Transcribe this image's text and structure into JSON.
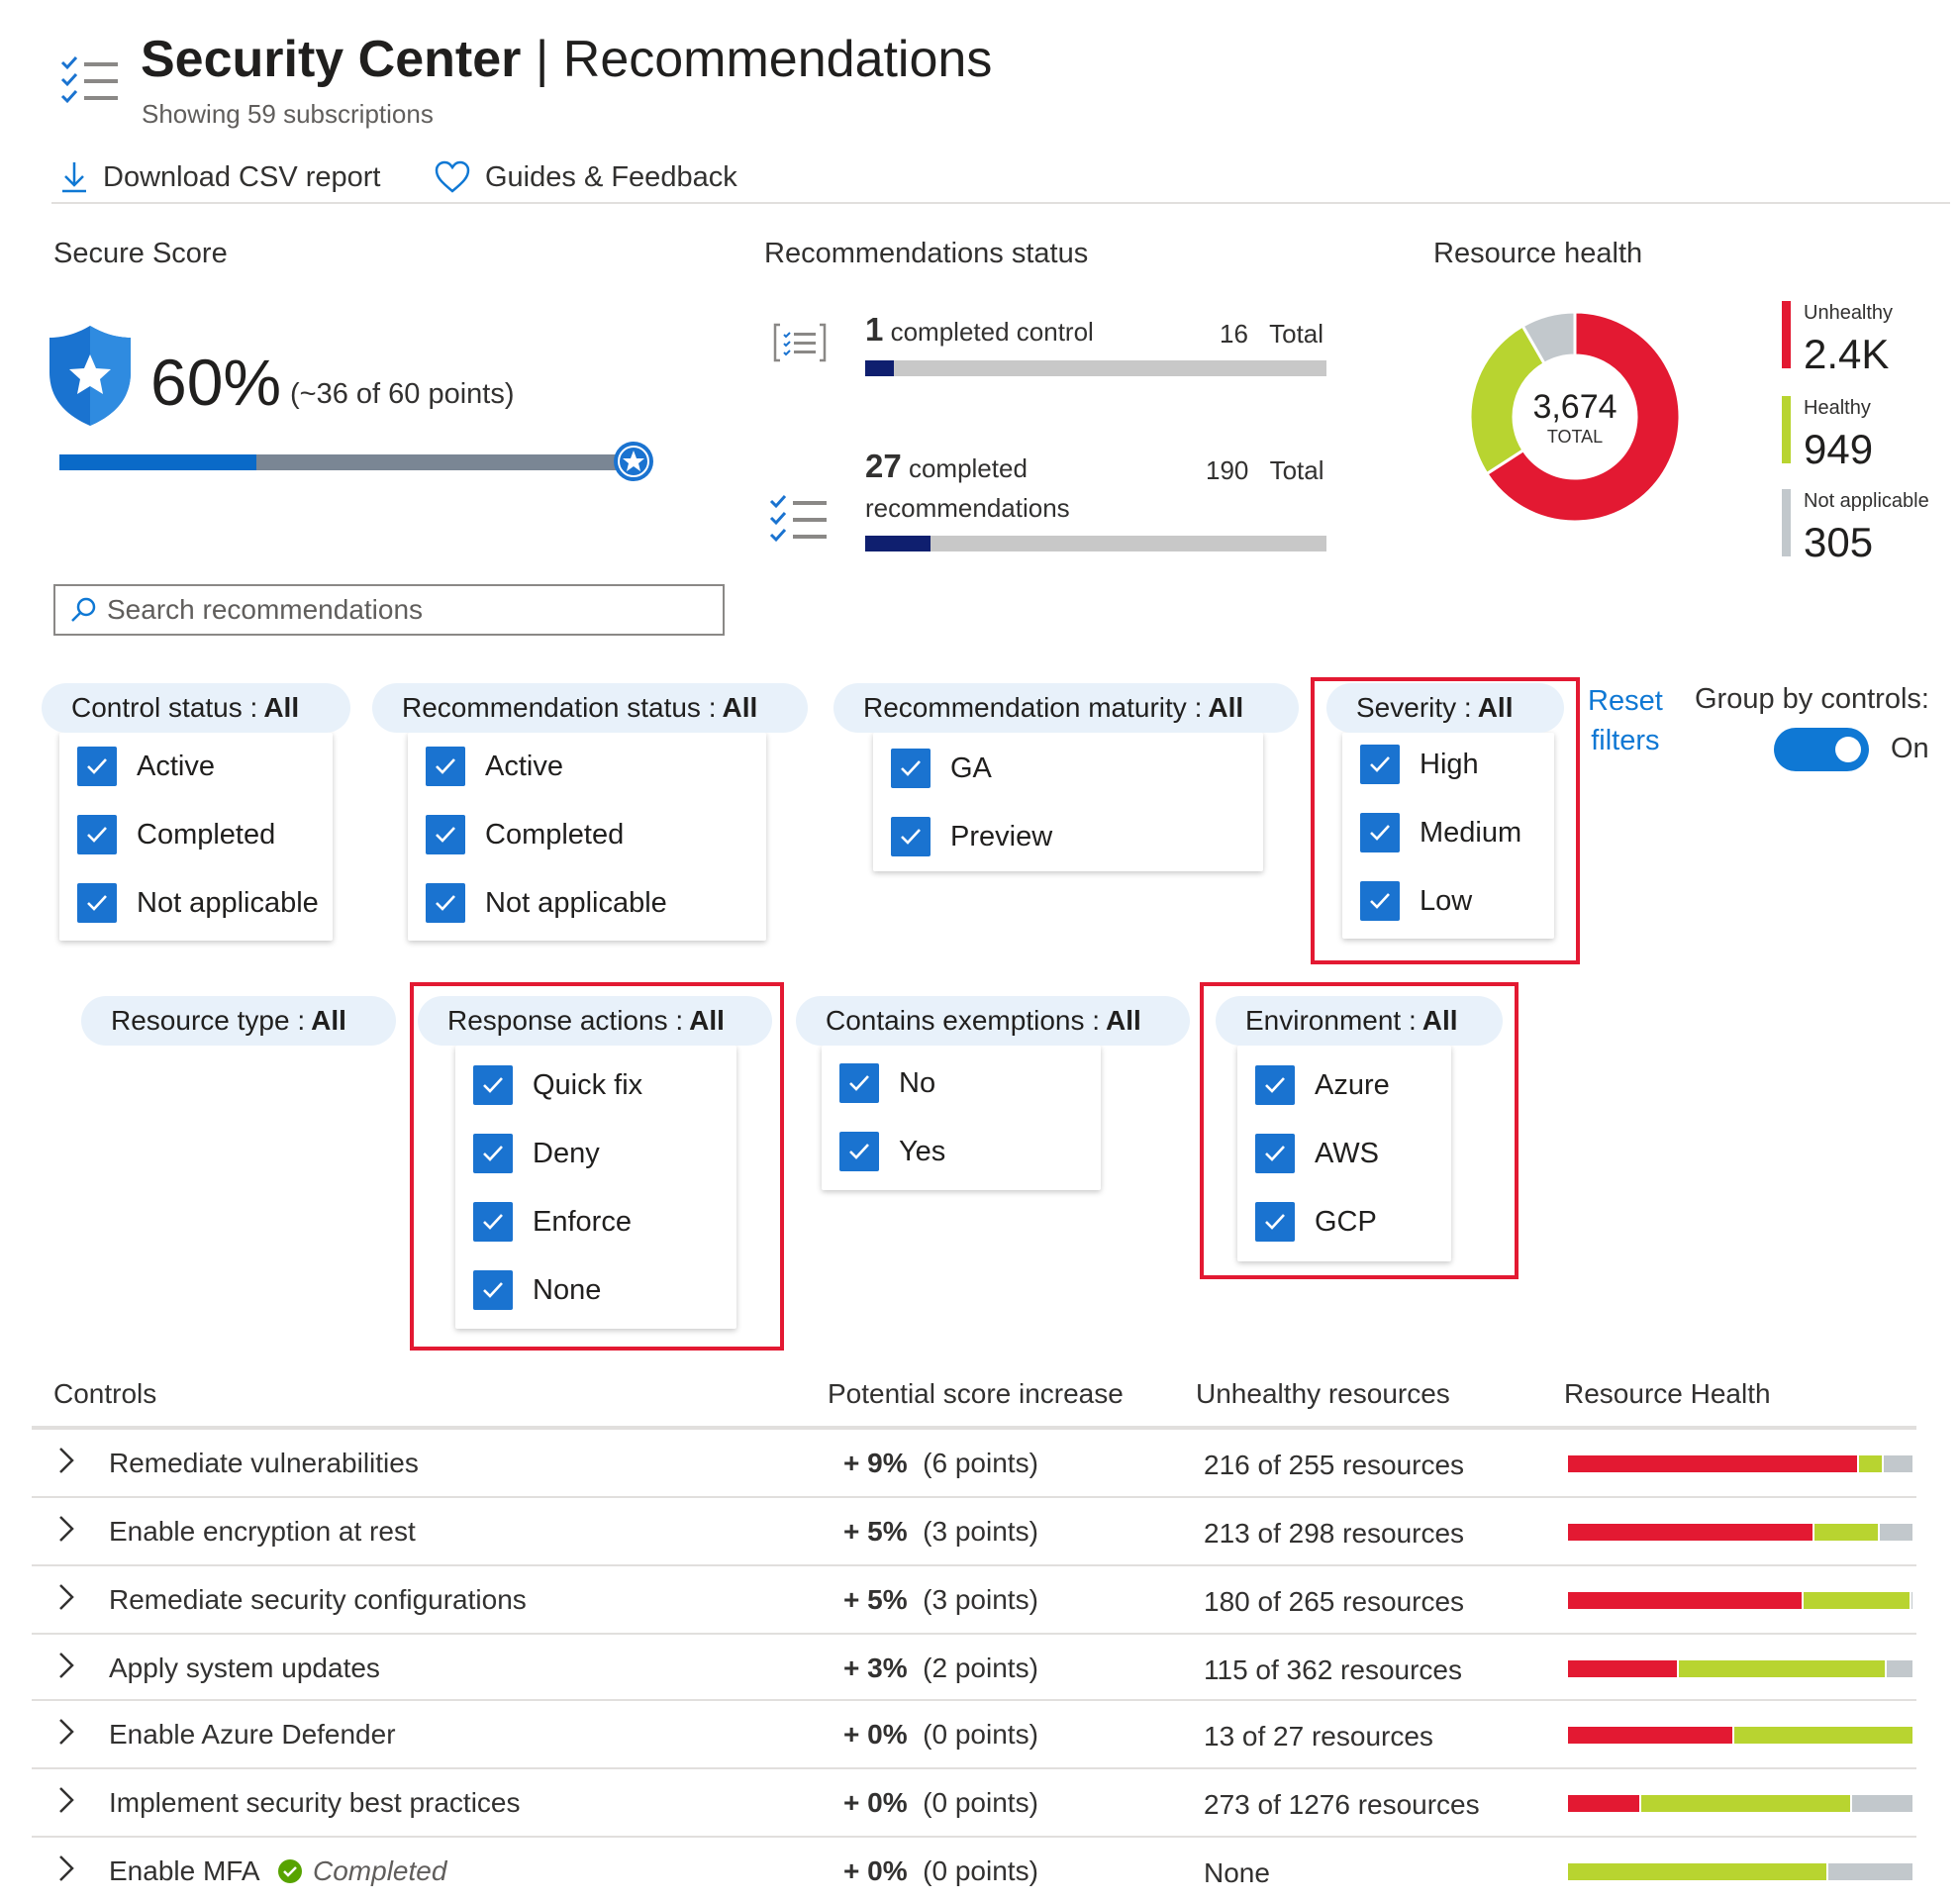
{
  "header": {
    "title_bold": "Security Center",
    "title_rest": "| Recommendations",
    "subtitle": "Showing 59 subscriptions"
  },
  "toolbar": {
    "download_label": "Download CSV report",
    "guides_label": "Guides & Feedback"
  },
  "secure_score": {
    "title": "Secure Score",
    "percent_text": "60%",
    "points_text": "(~36 of 60 points)",
    "percent": 60
  },
  "recommendations_status": {
    "title": "Recommendations status",
    "controls": {
      "completed": "1",
      "label": "completed control",
      "total": "16",
      "total_label": "Total",
      "fraction": 0.0625
    },
    "recs": {
      "completed": "27",
      "label_line1": "completed",
      "label_line2": "recommendations",
      "total": "190",
      "total_label": "Total",
      "fraction": 0.142
    }
  },
  "resource_health": {
    "title": "Resource health",
    "total_value": "3,674",
    "total_label": "TOTAL",
    "unhealthy_label": "Unhealthy",
    "unhealthy_value": "2.4K",
    "healthy_label": "Healthy",
    "healthy_value": "949",
    "na_label": "Not applicable",
    "na_value": "305",
    "slices": [
      2420,
      949,
      305
    ],
    "colors": {
      "unhealthy": "#e31932",
      "healthy": "#b8d430",
      "na": "#c2c8cc"
    }
  },
  "search": {
    "placeholder": "Search recommendations"
  },
  "filters": {
    "control_status": {
      "label": "Control status :",
      "value": "All",
      "options": [
        "Active",
        "Completed",
        "Not applicable"
      ]
    },
    "recommendation_status": {
      "label": "Recommendation status :",
      "value": "All",
      "options": [
        "Active",
        "Completed",
        "Not applicable"
      ]
    },
    "recommendation_maturity": {
      "label": "Recommendation maturity :",
      "value": "All",
      "options": [
        "GA",
        "Preview"
      ]
    },
    "severity": {
      "label": "Severity :",
      "value": "All",
      "options": [
        "High",
        "Medium",
        "Low"
      ]
    },
    "resource_type": {
      "label": "Resource type :",
      "value": "All"
    },
    "response_actions": {
      "label": "Response actions :",
      "value": "All",
      "options": [
        "Quick fix",
        "Deny",
        "Enforce",
        "None"
      ]
    },
    "contains_exemptions": {
      "label": "Contains exemptions :",
      "value": "All",
      "options": [
        "No",
        "Yes"
      ]
    },
    "environment": {
      "label": "Environment :",
      "value": "All",
      "options": [
        "Azure",
        "AWS",
        "GCP"
      ]
    },
    "reset_line1": "Reset",
    "reset_line2": "filters",
    "group_by_label": "Group by controls:",
    "group_by_state": "On"
  },
  "table": {
    "headers": [
      "Controls",
      "Potential score increase",
      "Unhealthy resources",
      "Resource Health"
    ],
    "rows": [
      {
        "name": "Remediate vulnerabilities",
        "pct": "+ 9%",
        "points": "(6 points)",
        "unhealthy": "216 of 255 resources",
        "health": [
          0.84,
          0.07,
          0.09
        ]
      },
      {
        "name": "Enable encryption at rest",
        "pct": "+ 5%",
        "points": "(3 points)",
        "unhealthy": "213 of 298 resources",
        "health": [
          0.71,
          0.19,
          0.1
        ]
      },
      {
        "name": "Remediate security configurations",
        "pct": "+ 5%",
        "points": "(3 points)",
        "unhealthy": "180 of 265 resources",
        "health": [
          0.68,
          0.31,
          0.01
        ]
      },
      {
        "name": "Apply system updates",
        "pct": "+ 3%",
        "points": "(2 points)",
        "unhealthy": "115 of 362 resources",
        "health": [
          0.32,
          0.6,
          0.08
        ]
      },
      {
        "name": "Enable Azure Defender",
        "pct": "+ 0%",
        "points": "(0 points)",
        "unhealthy": "13 of 27 resources",
        "health": [
          0.48,
          0.52,
          0.0
        ]
      },
      {
        "name": "Implement security best practices",
        "pct": "+ 0%",
        "points": "(0 points)",
        "unhealthy": "273 of 1276 resources",
        "health": [
          0.21,
          0.61,
          0.18
        ]
      },
      {
        "name": "Enable MFA",
        "badge": "Completed",
        "pct": "+ 0%",
        "points": "(0 points)",
        "unhealthy": "None",
        "health": [
          0.0,
          0.75,
          0.25
        ]
      }
    ]
  }
}
